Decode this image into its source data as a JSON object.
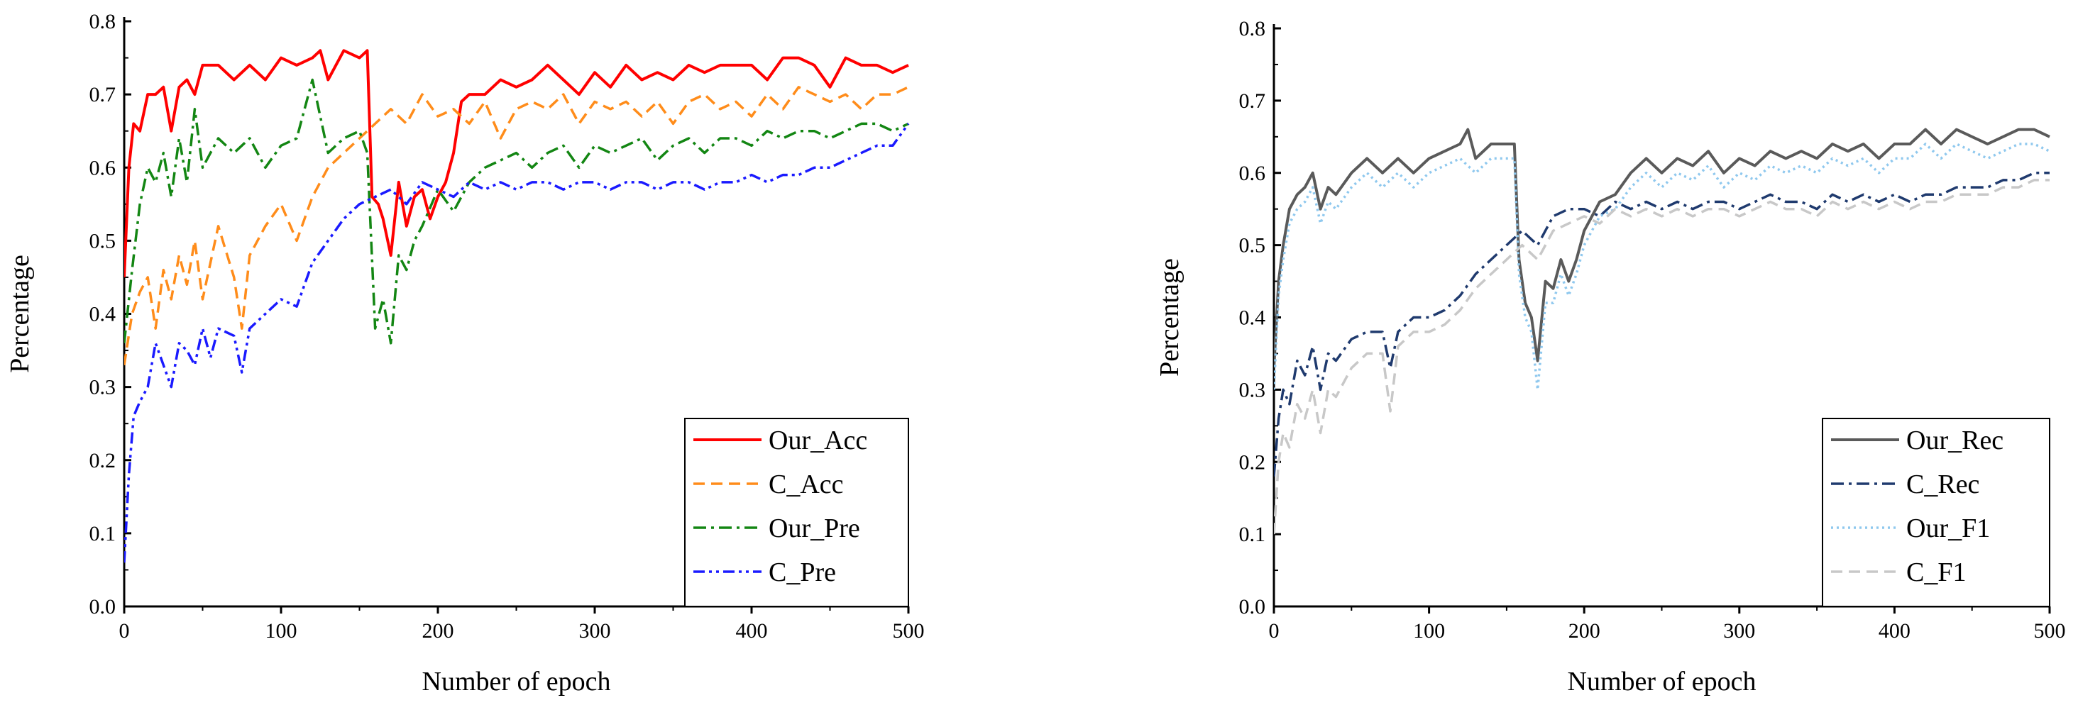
{
  "chart_data": [
    {
      "type": "line",
      "title": "",
      "xlabel": "Number of epoch",
      "ylabel": "Percentage",
      "xlim": [
        0,
        500
      ],
      "ylim": [
        0.0,
        0.8
      ],
      "xticks": [
        "0",
        "100",
        "200",
        "300",
        "400",
        "500"
      ],
      "yticks": [
        "0.0",
        "0.1",
        "0.2",
        "0.3",
        "0.4",
        "0.5",
        "0.6",
        "0.7",
        "0.8"
      ],
      "legend_position": "bottom-right",
      "series": [
        {
          "name": "Our_Acc",
          "color": "#ff0000",
          "dash": "solid",
          "x": [
            0,
            3,
            6,
            10,
            15,
            20,
            25,
            30,
            35,
            40,
            45,
            50,
            60,
            70,
            80,
            90,
            100,
            110,
            120,
            125,
            130,
            140,
            150,
            155,
            158,
            162,
            165,
            170,
            175,
            180,
            185,
            190,
            195,
            200,
            205,
            210,
            215,
            220,
            230,
            240,
            250,
            260,
            270,
            280,
            290,
            300,
            310,
            320,
            330,
            340,
            350,
            360,
            370,
            380,
            390,
            400,
            410,
            420,
            430,
            440,
            450,
            460,
            470,
            480,
            490,
            500
          ],
          "y": [
            0.45,
            0.6,
            0.66,
            0.65,
            0.7,
            0.7,
            0.71,
            0.65,
            0.71,
            0.72,
            0.7,
            0.74,
            0.74,
            0.72,
            0.74,
            0.72,
            0.75,
            0.74,
            0.75,
            0.76,
            0.72,
            0.76,
            0.75,
            0.76,
            0.56,
            0.55,
            0.53,
            0.48,
            0.58,
            0.52,
            0.56,
            0.57,
            0.53,
            0.56,
            0.58,
            0.62,
            0.69,
            0.7,
            0.7,
            0.72,
            0.71,
            0.72,
            0.74,
            0.72,
            0.7,
            0.73,
            0.71,
            0.74,
            0.72,
            0.73,
            0.72,
            0.74,
            0.73,
            0.74,
            0.74,
            0.74,
            0.72,
            0.75,
            0.75,
            0.74,
            0.71,
            0.75,
            0.74,
            0.74,
            0.73,
            0.74
          ]
        },
        {
          "name": "C_Acc",
          "color": "#ff8c1a",
          "dash": "dashed",
          "x": [
            0,
            5,
            10,
            15,
            20,
            25,
            30,
            35,
            40,
            45,
            50,
            60,
            70,
            75,
            80,
            90,
            100,
            110,
            120,
            130,
            140,
            150,
            160,
            170,
            180,
            190,
            200,
            210,
            220,
            230,
            240,
            250,
            260,
            270,
            280,
            290,
            300,
            310,
            320,
            330,
            340,
            350,
            360,
            370,
            380,
            390,
            400,
            410,
            420,
            430,
            440,
            450,
            460,
            470,
            480,
            490,
            500
          ],
          "y": [
            0.33,
            0.4,
            0.43,
            0.45,
            0.38,
            0.46,
            0.42,
            0.48,
            0.44,
            0.5,
            0.42,
            0.52,
            0.45,
            0.38,
            0.48,
            0.52,
            0.55,
            0.5,
            0.56,
            0.6,
            0.62,
            0.64,
            0.66,
            0.68,
            0.66,
            0.7,
            0.67,
            0.68,
            0.66,
            0.69,
            0.64,
            0.68,
            0.69,
            0.68,
            0.7,
            0.66,
            0.69,
            0.68,
            0.69,
            0.67,
            0.69,
            0.66,
            0.69,
            0.7,
            0.68,
            0.69,
            0.67,
            0.7,
            0.68,
            0.71,
            0.7,
            0.69,
            0.7,
            0.68,
            0.7,
            0.7,
            0.71
          ]
        },
        {
          "name": "Our_Pre",
          "color": "#138613",
          "dash": "dashdot",
          "x": [
            0,
            5,
            10,
            15,
            20,
            25,
            30,
            35,
            40,
            45,
            50,
            60,
            70,
            80,
            90,
            100,
            110,
            120,
            130,
            140,
            150,
            155,
            160,
            165,
            170,
            175,
            180,
            185,
            190,
            200,
            210,
            220,
            230,
            240,
            250,
            260,
            270,
            280,
            290,
            300,
            310,
            320,
            330,
            340,
            350,
            360,
            370,
            380,
            390,
            400,
            410,
            420,
            430,
            440,
            450,
            460,
            470,
            480,
            490,
            500
          ],
          "y": [
            0.36,
            0.46,
            0.55,
            0.6,
            0.58,
            0.62,
            0.56,
            0.64,
            0.58,
            0.68,
            0.6,
            0.64,
            0.62,
            0.64,
            0.6,
            0.63,
            0.64,
            0.72,
            0.62,
            0.64,
            0.65,
            0.62,
            0.38,
            0.42,
            0.36,
            0.48,
            0.46,
            0.5,
            0.52,
            0.57,
            0.54,
            0.58,
            0.6,
            0.61,
            0.62,
            0.6,
            0.62,
            0.63,
            0.6,
            0.63,
            0.62,
            0.63,
            0.64,
            0.61,
            0.63,
            0.64,
            0.62,
            0.64,
            0.64,
            0.63,
            0.65,
            0.64,
            0.65,
            0.65,
            0.64,
            0.65,
            0.66,
            0.66,
            0.65,
            0.66
          ]
        },
        {
          "name": "C_Pre",
          "color": "#1a1aff",
          "dash": "dashdotdot",
          "x": [
            0,
            3,
            6,
            10,
            15,
            20,
            25,
            30,
            35,
            40,
            45,
            50,
            55,
            60,
            70,
            75,
            80,
            90,
            100,
            110,
            120,
            130,
            140,
            150,
            160,
            170,
            180,
            190,
            200,
            210,
            220,
            230,
            240,
            250,
            260,
            270,
            280,
            290,
            300,
            310,
            320,
            330,
            340,
            350,
            360,
            370,
            380,
            390,
            400,
            410,
            420,
            430,
            440,
            450,
            460,
            470,
            480,
            490,
            500
          ],
          "y": [
            0.06,
            0.18,
            0.26,
            0.28,
            0.3,
            0.36,
            0.33,
            0.3,
            0.36,
            0.35,
            0.33,
            0.38,
            0.34,
            0.38,
            0.37,
            0.32,
            0.38,
            0.4,
            0.42,
            0.41,
            0.47,
            0.5,
            0.53,
            0.55,
            0.56,
            0.57,
            0.55,
            0.58,
            0.57,
            0.56,
            0.58,
            0.57,
            0.58,
            0.57,
            0.58,
            0.58,
            0.57,
            0.58,
            0.58,
            0.57,
            0.58,
            0.58,
            0.57,
            0.58,
            0.58,
            0.57,
            0.58,
            0.58,
            0.59,
            0.58,
            0.59,
            0.59,
            0.6,
            0.6,
            0.61,
            0.62,
            0.63,
            0.63,
            0.66
          ]
        }
      ]
    },
    {
      "type": "line",
      "title": "",
      "xlabel": "Number of epoch",
      "ylabel": "Percentage",
      "xlim": [
        0,
        500
      ],
      "ylim": [
        0.0,
        0.8
      ],
      "xticks": [
        "0",
        "100",
        "200",
        "300",
        "400",
        "500"
      ],
      "yticks": [
        "0.0",
        "0.1",
        "0.2",
        "0.3",
        "0.4",
        "0.5",
        "0.6",
        "0.7",
        "0.8"
      ],
      "legend_position": "bottom-right",
      "series": [
        {
          "name": "Our_Rec",
          "color": "#5a5a5a",
          "dash": "solid",
          "x": [
            0,
            3,
            6,
            10,
            15,
            20,
            25,
            30,
            35,
            40,
            50,
            60,
            70,
            80,
            90,
            100,
            110,
            120,
            125,
            130,
            140,
            150,
            155,
            158,
            162,
            166,
            170,
            175,
            180,
            185,
            190,
            195,
            200,
            210,
            220,
            230,
            240,
            250,
            260,
            270,
            280,
            290,
            300,
            310,
            320,
            330,
            340,
            350,
            360,
            370,
            380,
            390,
            400,
            410,
            420,
            430,
            440,
            450,
            460,
            470,
            480,
            490,
            500
          ],
          "y": [
            0.33,
            0.45,
            0.5,
            0.55,
            0.57,
            0.58,
            0.6,
            0.55,
            0.58,
            0.57,
            0.6,
            0.62,
            0.6,
            0.62,
            0.6,
            0.62,
            0.63,
            0.64,
            0.66,
            0.62,
            0.64,
            0.64,
            0.64,
            0.48,
            0.42,
            0.4,
            0.34,
            0.45,
            0.44,
            0.48,
            0.45,
            0.48,
            0.52,
            0.56,
            0.57,
            0.6,
            0.62,
            0.6,
            0.62,
            0.61,
            0.63,
            0.6,
            0.62,
            0.61,
            0.63,
            0.62,
            0.63,
            0.62,
            0.64,
            0.63,
            0.64,
            0.62,
            0.64,
            0.64,
            0.66,
            0.64,
            0.66,
            0.65,
            0.64,
            0.65,
            0.66,
            0.66,
            0.65
          ]
        },
        {
          "name": "C_Rec",
          "color": "#1f3a6e",
          "dash": "dashdot",
          "x": [
            0,
            3,
            6,
            10,
            15,
            20,
            25,
            30,
            35,
            40,
            50,
            60,
            70,
            75,
            80,
            90,
            100,
            110,
            120,
            130,
            140,
            150,
            160,
            170,
            180,
            190,
            200,
            210,
            220,
            230,
            240,
            250,
            260,
            270,
            280,
            290,
            300,
            310,
            320,
            330,
            340,
            350,
            360,
            370,
            380,
            390,
            400,
            410,
            420,
            430,
            440,
            450,
            460,
            470,
            480,
            490,
            500
          ],
          "y": [
            0.18,
            0.26,
            0.3,
            0.28,
            0.34,
            0.32,
            0.36,
            0.3,
            0.35,
            0.34,
            0.37,
            0.38,
            0.38,
            0.33,
            0.38,
            0.4,
            0.4,
            0.41,
            0.43,
            0.46,
            0.48,
            0.5,
            0.52,
            0.5,
            0.54,
            0.55,
            0.55,
            0.54,
            0.56,
            0.55,
            0.56,
            0.55,
            0.56,
            0.55,
            0.56,
            0.56,
            0.55,
            0.56,
            0.57,
            0.56,
            0.56,
            0.55,
            0.57,
            0.56,
            0.57,
            0.56,
            0.57,
            0.56,
            0.57,
            0.57,
            0.58,
            0.58,
            0.58,
            0.59,
            0.59,
            0.6,
            0.6
          ]
        },
        {
          "name": "Our_F1",
          "color": "#8fc8ee",
          "dash": "dotted",
          "x": [
            0,
            3,
            6,
            10,
            15,
            20,
            25,
            30,
            35,
            40,
            50,
            60,
            70,
            80,
            90,
            100,
            110,
            120,
            130,
            140,
            150,
            155,
            158,
            162,
            166,
            170,
            175,
            180,
            185,
            190,
            195,
            200,
            210,
            220,
            230,
            240,
            250,
            260,
            270,
            280,
            290,
            300,
            310,
            320,
            330,
            340,
            350,
            360,
            370,
            380,
            390,
            400,
            410,
            420,
            430,
            440,
            450,
            460,
            470,
            480,
            490,
            500
          ],
          "y": [
            0.3,
            0.43,
            0.48,
            0.53,
            0.55,
            0.56,
            0.58,
            0.53,
            0.56,
            0.55,
            0.58,
            0.6,
            0.58,
            0.6,
            0.58,
            0.6,
            0.61,
            0.62,
            0.6,
            0.62,
            0.62,
            0.62,
            0.46,
            0.4,
            0.38,
            0.3,
            0.42,
            0.42,
            0.46,
            0.43,
            0.46,
            0.5,
            0.54,
            0.55,
            0.58,
            0.6,
            0.58,
            0.6,
            0.59,
            0.61,
            0.58,
            0.6,
            0.59,
            0.61,
            0.6,
            0.61,
            0.6,
            0.62,
            0.61,
            0.62,
            0.6,
            0.62,
            0.62,
            0.64,
            0.62,
            0.64,
            0.63,
            0.62,
            0.63,
            0.64,
            0.64,
            0.63
          ]
        },
        {
          "name": "C_F1",
          "color": "#c8c8c8",
          "dash": "dashed",
          "x": [
            0,
            3,
            6,
            10,
            15,
            20,
            25,
            30,
            35,
            40,
            50,
            60,
            70,
            75,
            80,
            90,
            100,
            110,
            120,
            130,
            140,
            150,
            160,
            170,
            180,
            190,
            200,
            210,
            220,
            230,
            240,
            250,
            260,
            270,
            280,
            290,
            300,
            310,
            320,
            330,
            340,
            350,
            360,
            370,
            380,
            390,
            400,
            410,
            420,
            430,
            440,
            450,
            460,
            470,
            480,
            490,
            500
          ],
          "y": [
            0.1,
            0.2,
            0.24,
            0.22,
            0.28,
            0.26,
            0.3,
            0.24,
            0.3,
            0.29,
            0.33,
            0.35,
            0.35,
            0.27,
            0.36,
            0.38,
            0.38,
            0.39,
            0.41,
            0.44,
            0.46,
            0.48,
            0.5,
            0.48,
            0.52,
            0.53,
            0.54,
            0.53,
            0.55,
            0.54,
            0.55,
            0.54,
            0.55,
            0.54,
            0.55,
            0.55,
            0.54,
            0.55,
            0.56,
            0.55,
            0.55,
            0.54,
            0.56,
            0.55,
            0.56,
            0.55,
            0.56,
            0.55,
            0.56,
            0.56,
            0.57,
            0.57,
            0.57,
            0.58,
            0.58,
            0.59,
            0.59
          ]
        }
      ]
    }
  ]
}
